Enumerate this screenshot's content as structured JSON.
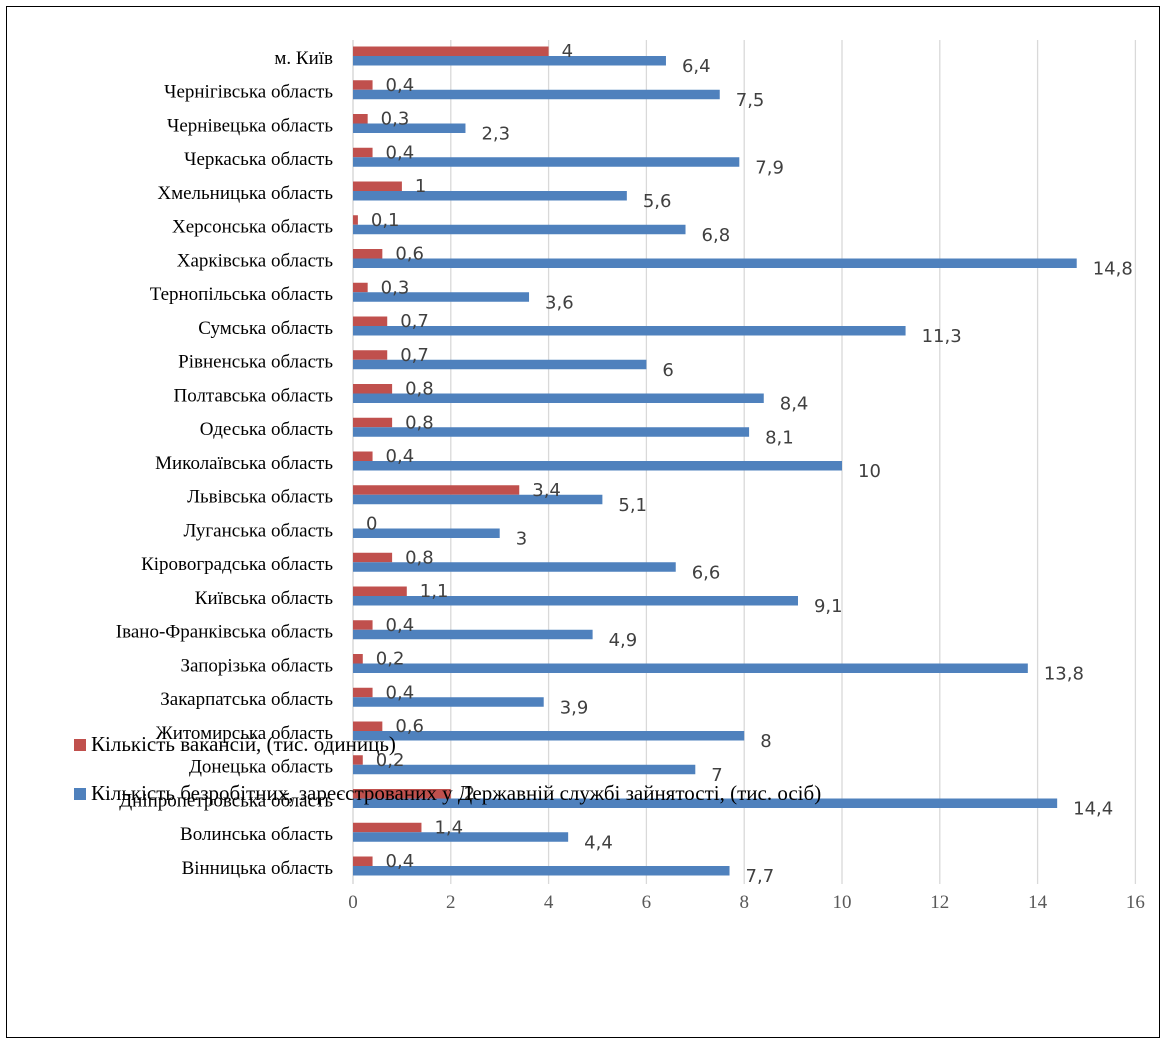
{
  "chart_data": {
    "type": "bar",
    "orientation": "horizontal",
    "title": "",
    "xlabel": "",
    "ylabel": "",
    "xlim": [
      0,
      16
    ],
    "x_ticks": [
      0,
      2,
      4,
      6,
      8,
      10,
      12,
      14,
      16
    ],
    "grid": "vertical",
    "legend_position": "bottom-left",
    "categories": [
      "м. Київ",
      "Чернігівська область",
      "Чернівецька область",
      "Черкаська область",
      "Хмельницька область",
      "Херсонська область",
      "Харківська область",
      "Тернопільська область",
      "Сумська область",
      "Рівненська область",
      "Полтавська область",
      "Одеська область",
      "Миколаївська область",
      "Львівська область",
      "Луганська область",
      "Кіровоградська область",
      "Київська область",
      "Івано-Франківська область",
      "Запорізька область",
      "Закарпатська область",
      "Житомирська область",
      "Донецька область",
      "Дніпропетровська область",
      "Волинська область",
      "Вінницька область"
    ],
    "series": [
      {
        "name": "Кількість вакансій, (тис. одиниць)",
        "color": "#C0504D",
        "values": [
          4,
          0.4,
          0.3,
          0.4,
          1,
          0.1,
          0.6,
          0.3,
          0.7,
          0.7,
          0.8,
          0.8,
          0.4,
          3.4,
          0,
          0.8,
          1.1,
          0.4,
          0.2,
          0.4,
          0.6,
          0.2,
          2,
          1.4,
          0.4
        ],
        "labels": [
          "4",
          "0,4",
          "0,3",
          "0,4",
          "1",
          "0,1",
          "0,6",
          "0,3",
          "0,7",
          "0,7",
          "0,8",
          "0,8",
          "0,4",
          "3,4",
          "0",
          "0,8",
          "1,1",
          "0,4",
          "0,2",
          "0,4",
          "0,6",
          "0,2",
          "2",
          "1,4",
          "0,4"
        ]
      },
      {
        "name": "Кількість безробітних, зареєстрованих у Державній службі зайнятості, (тис. осіб)",
        "color": "#4F81BD",
        "values": [
          6.4,
          7.5,
          2.3,
          7.9,
          5.6,
          6.8,
          14.8,
          3.6,
          11.3,
          6,
          8.4,
          8.1,
          10,
          5.1,
          3,
          6.6,
          9.1,
          4.9,
          13.8,
          3.9,
          8,
          7,
          14.4,
          4.4,
          7.7
        ],
        "labels": [
          "6,4",
          "7,5",
          "2,3",
          "7,9",
          "5,6",
          "6,8",
          "14,8",
          "3,6",
          "11,3",
          "6",
          "8,4",
          "8,1",
          "10",
          "5,1",
          "3",
          "6,6",
          "9,1",
          "4,9",
          "13,8",
          "3,9",
          "8",
          "7",
          "14,4",
          "4,4",
          "7,7"
        ]
      }
    ]
  }
}
